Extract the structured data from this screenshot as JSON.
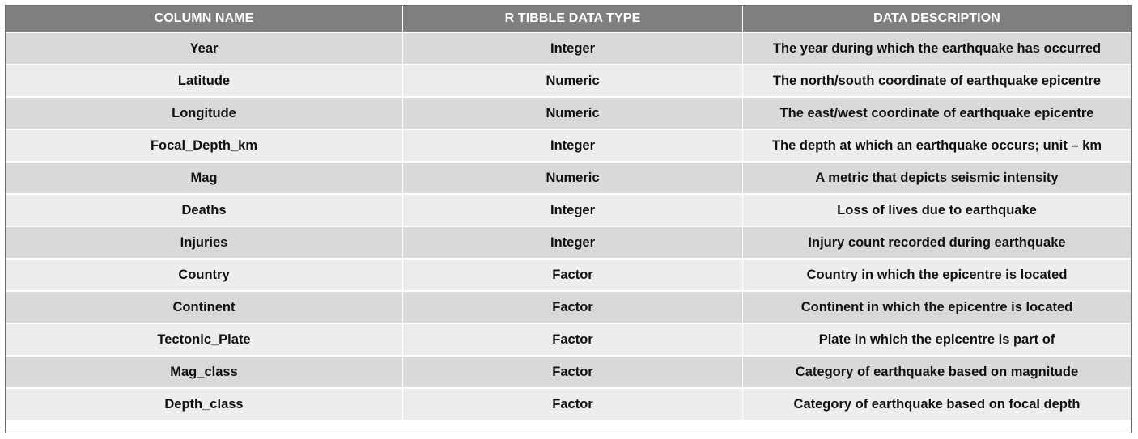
{
  "table": {
    "headers": [
      "COLUMN NAME",
      "R TIBBLE DATA TYPE",
      "DATA DESCRIPTION"
    ],
    "rows": [
      [
        "Year",
        "Integer",
        "The year during which the earthquake has occurred"
      ],
      [
        "Latitude",
        "Numeric",
        "The north/south coordinate of earthquake epicentre"
      ],
      [
        "Longitude",
        "Numeric",
        "The east/west coordinate of earthquake epicentre"
      ],
      [
        "Focal_Depth_km",
        "Integer",
        "The depth at which an earthquake occurs; unit – km"
      ],
      [
        "Mag",
        "Numeric",
        "A metric that depicts seismic intensity"
      ],
      [
        "Deaths",
        "Integer",
        "Loss of lives due to earthquake"
      ],
      [
        "Injuries",
        "Integer",
        "Injury count recorded during earthquake"
      ],
      [
        "Country",
        "Factor",
        "Country in which the epicentre is located"
      ],
      [
        "Continent",
        "Factor",
        "Continent in which the epicentre is located"
      ],
      [
        "Tectonic_Plate",
        "Factor",
        "Plate in which the epicentre is part of"
      ],
      [
        "Mag_class",
        "Factor",
        "Category of earthquake based on magnitude"
      ],
      [
        "Depth_class",
        "Factor",
        "Category of earthquake based on focal depth"
      ]
    ]
  },
  "colors": {
    "header_bg": "#7f7f7f",
    "row_odd_bg": "#d9d9d9",
    "row_even_bg": "#ededed"
  }
}
